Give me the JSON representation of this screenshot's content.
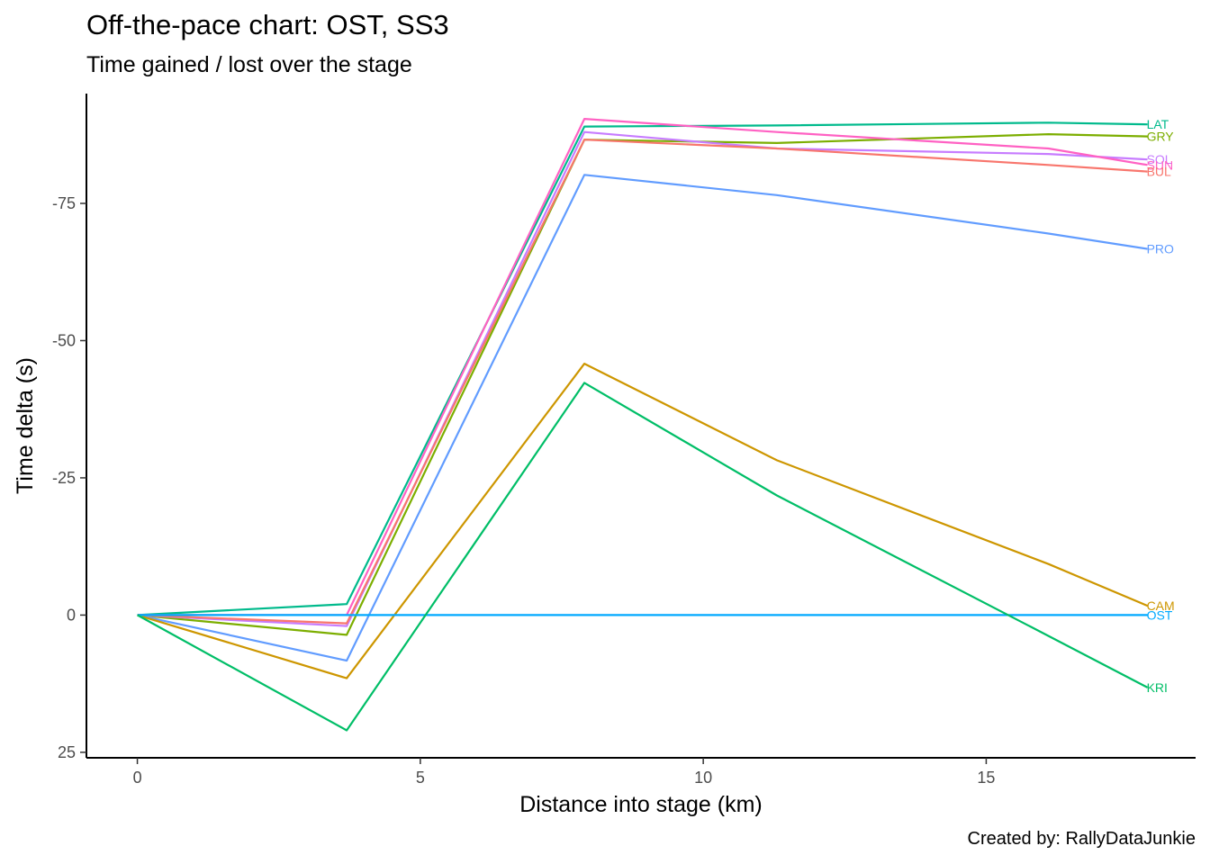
{
  "title": "Off-the-pace chart: OST, SS3",
  "subtitle": "Time gained / lost over the stage",
  "caption": "Created by: RallyDataJunkie",
  "chart_data": {
    "type": "line",
    "title": "Off-the-pace chart: OST, SS3",
    "subtitle": "Time gained / lost over the stage",
    "xlabel": "Distance into stage (km)",
    "ylabel": "Time delta (s)",
    "xlim": [
      -0.9,
      18.7
    ],
    "ylim": [
      26,
      -95
    ],
    "y_reversed": true,
    "x_ticks": [
      0,
      5,
      10,
      15
    ],
    "y_ticks": [
      25,
      0,
      -25,
      -50,
      -75
    ],
    "grid": false,
    "legend": "none (direct labels at line ends)",
    "series": [
      {
        "name": "LAT",
        "color": "#00BA8C",
        "x": [
          0,
          3.7,
          7.9,
          11.3,
          16.1,
          17.85
        ],
        "y": [
          0,
          -2,
          -89.0,
          -89.2,
          -89.7,
          -89.4
        ]
      },
      {
        "name": "GRY",
        "color": "#7CAE00",
        "x": [
          0,
          3.7,
          7.9,
          11.3,
          16.1,
          17.85
        ],
        "y": [
          0,
          3.6,
          -86.6,
          -86.0,
          -87.6,
          -87.2
        ]
      },
      {
        "name": "SOL",
        "color": "#C77CFF",
        "x": [
          0,
          3.7,
          7.9,
          11.3,
          16.1,
          17.85
        ],
        "y": [
          0,
          2.0,
          -88.0,
          -85.0,
          -84.0,
          -83.0
        ]
      },
      {
        "name": "SUN",
        "color": "#FF61C3",
        "x": [
          0,
          3.7,
          7.9,
          11.3,
          16.1,
          17.85
        ],
        "y": [
          0,
          0,
          -90.4,
          -88.0,
          -85.0,
          -82.0
        ]
      },
      {
        "name": "BUL",
        "color": "#F8766D",
        "x": [
          0,
          3.7,
          7.9,
          11.3,
          16.1,
          17.85
        ],
        "y": [
          0,
          1.5,
          -86.6,
          -85.0,
          -82.0,
          -80.8
        ]
      },
      {
        "name": "PRO",
        "color": "#619CFF",
        "x": [
          0,
          3.7,
          7.9,
          11.3,
          16.1,
          17.85
        ],
        "y": [
          0,
          8.3,
          -80.2,
          -76.5,
          -69.5,
          -66.7
        ]
      },
      {
        "name": "CAM",
        "color": "#CD9600",
        "x": [
          0,
          3.7,
          7.9,
          11.3,
          16.1,
          17.85
        ],
        "y": [
          0,
          11.5,
          -45.8,
          -28.2,
          -9.3,
          -1.7
        ]
      },
      {
        "name": "OST",
        "color": "#00A9FF",
        "x": [
          0,
          3.7,
          7.9,
          11.3,
          16.1,
          17.85
        ],
        "y": [
          0,
          0,
          0,
          0,
          0,
          0
        ]
      },
      {
        "name": "KRI",
        "color": "#00BE67",
        "x": [
          0,
          3.7,
          7.9,
          11.3,
          16.1,
          17.85
        ],
        "y": [
          0,
          21.0,
          -42.3,
          -21.8,
          3.8,
          13.2
        ]
      }
    ]
  }
}
